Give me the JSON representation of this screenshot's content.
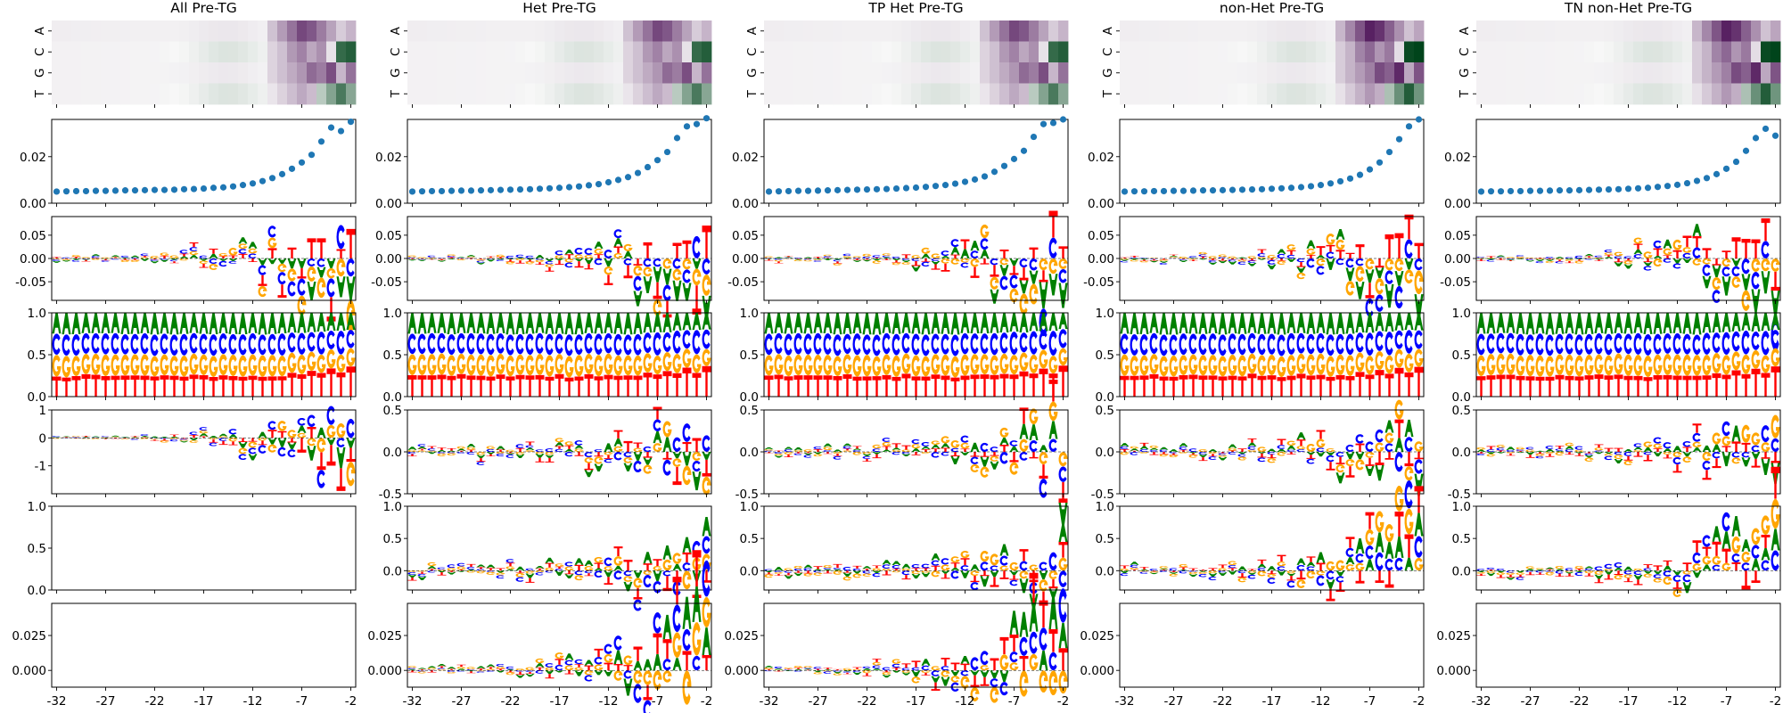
{
  "chart_data": {
    "type": "logo-grid",
    "column_titles": [
      "All Pre-TG",
      "Het Pre-TG",
      "TP Het Pre-TG",
      "non-Het Pre-TG",
      "TN non-Het Pre-TG"
    ],
    "x_positions": [
      -32,
      -31,
      -30,
      -29,
      -28,
      -27,
      -26,
      -25,
      -24,
      -23,
      -22,
      -21,
      -20,
      -19,
      -18,
      -17,
      -16,
      -15,
      -14,
      -13,
      -12,
      -11,
      -10,
      -9,
      -8,
      -7,
      -6,
      -5,
      -4,
      -3,
      -2
    ],
    "x_tick_labels": [
      "-32",
      "-27",
      "-22",
      "-17",
      "-12",
      "-7",
      "-2"
    ],
    "bases": [
      "A",
      "C",
      "G",
      "T"
    ],
    "base_colors": {
      "A": "#008000",
      "C": "#0000ff",
      "G": "#ffa500",
      "T": "#ff0000"
    },
    "rows": [
      {
        "kind": "heatmap",
        "yticks": [
          "A",
          "C",
          "G",
          "T"
        ],
        "colormap": "purple-green diverging"
      },
      {
        "kind": "scatter",
        "ylim": [
          0,
          0.036
        ],
        "yticks": [
          "0.00",
          "0.02"
        ],
        "point_color": "#1f77b4"
      },
      {
        "kind": "logo",
        "ylim": [
          -0.09,
          0.09
        ],
        "yticks": [
          "0.05",
          "0.00",
          "-0.05"
        ]
      },
      {
        "kind": "logo",
        "ylim": [
          0,
          1
        ],
        "yticks": [
          "1.0",
          "0.5",
          "0.0"
        ]
      },
      {
        "kind": "logo",
        "ylim_col1": [
          -2,
          1
        ],
        "yticks_col1": [
          "1",
          "0",
          "-1"
        ],
        "ylim": [
          -0.5,
          0.5
        ],
        "yticks": [
          "0.5",
          "0.0",
          "-0.5"
        ]
      },
      {
        "kind": "logo",
        "ylim": [
          -0.3,
          1.0
        ],
        "yticks": [
          "1.0",
          "0.5",
          "0.0"
        ]
      },
      {
        "kind": "logo",
        "ylim": [
          -0.012,
          0.048
        ],
        "yticks": [
          "0.025",
          "0.000"
        ]
      }
    ],
    "scatter_values": [
      [
        0.005,
        0.0051,
        0.0052,
        0.0052,
        0.0053,
        0.0053,
        0.0054,
        0.0055,
        0.0055,
        0.0056,
        0.0057,
        0.0057,
        0.0058,
        0.006,
        0.0061,
        0.0063,
        0.0066,
        0.0068,
        0.0072,
        0.0078,
        0.0085,
        0.0095,
        0.0108,
        0.0125,
        0.0148,
        0.0175,
        0.0208,
        0.0265,
        0.0325,
        0.031,
        0.035
      ],
      [
        0.005,
        0.0051,
        0.0052,
        0.0052,
        0.0053,
        0.0054,
        0.0054,
        0.0055,
        0.0056,
        0.0057,
        0.0058,
        0.0059,
        0.006,
        0.0062,
        0.0064,
        0.0066,
        0.0069,
        0.0072,
        0.0077,
        0.0082,
        0.009,
        0.01,
        0.0112,
        0.013,
        0.0155,
        0.0185,
        0.022,
        0.028,
        0.033,
        0.034,
        0.0365
      ],
      [
        0.005,
        0.0051,
        0.0052,
        0.0053,
        0.0053,
        0.0054,
        0.0055,
        0.0056,
        0.0057,
        0.0058,
        0.0059,
        0.006,
        0.0061,
        0.0063,
        0.0065,
        0.0067,
        0.007,
        0.0074,
        0.0078,
        0.0084,
        0.0092,
        0.0102,
        0.0115,
        0.0135,
        0.016,
        0.019,
        0.0225,
        0.0285,
        0.034,
        0.0345,
        0.036
      ],
      [
        0.005,
        0.0051,
        0.0051,
        0.0052,
        0.0052,
        0.0053,
        0.0053,
        0.0054,
        0.0055,
        0.0055,
        0.0056,
        0.0057,
        0.0058,
        0.0059,
        0.006,
        0.0062,
        0.0064,
        0.0066,
        0.0069,
        0.0073,
        0.0078,
        0.0085,
        0.0094,
        0.0106,
        0.0122,
        0.0145,
        0.0175,
        0.022,
        0.0275,
        0.033,
        0.036
      ],
      [
        0.005,
        0.0051,
        0.0051,
        0.0052,
        0.0052,
        0.0053,
        0.0053,
        0.0054,
        0.0055,
        0.0055,
        0.0056,
        0.0057,
        0.0058,
        0.0059,
        0.006,
        0.0062,
        0.0064,
        0.0066,
        0.007,
        0.0074,
        0.0079,
        0.0086,
        0.0096,
        0.0108,
        0.0125,
        0.0148,
        0.0178,
        0.0225,
        0.028,
        0.032,
        0.029
      ]
    ]
  }
}
